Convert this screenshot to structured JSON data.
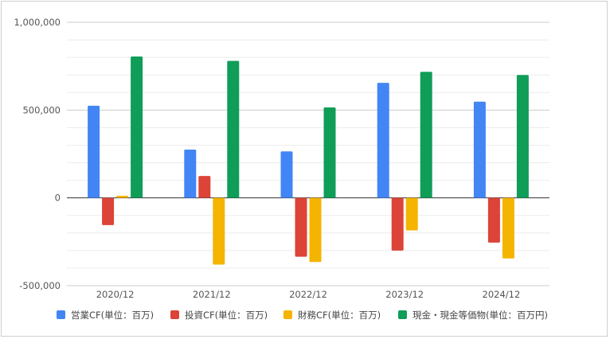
{
  "chart_data": {
    "type": "bar",
    "categories": [
      "2020/12",
      "2021/12",
      "2022/12",
      "2023/12",
      "2024/12"
    ],
    "series": [
      {
        "name": "営業CF(単位：百万)",
        "color": "#4285f4",
        "values": [
          525000,
          275000,
          265000,
          655000,
          548000
        ]
      },
      {
        "name": "投資CF(単位：百万)",
        "color": "#db4437",
        "values": [
          -155000,
          125000,
          -335000,
          -300000,
          -255000
        ]
      },
      {
        "name": "財務CF(単位：百万)",
        "color": "#f4b400",
        "values": [
          12000,
          -380000,
          -365000,
          -185000,
          -345000
        ]
      },
      {
        "name": "現金・現金等価物(単位：百万円)",
        "color": "#0f9d58",
        "values": [
          805000,
          780000,
          515000,
          718000,
          700000
        ]
      }
    ],
    "ylim": [
      -500000,
      1000000
    ],
    "yticks": [
      "-500,000",
      "0",
      "500,000",
      "1,000,000"
    ],
    "ytick_values": [
      -500000,
      0,
      500000,
      1000000
    ],
    "minor_gridlines": true,
    "legend_position": "bottom"
  }
}
